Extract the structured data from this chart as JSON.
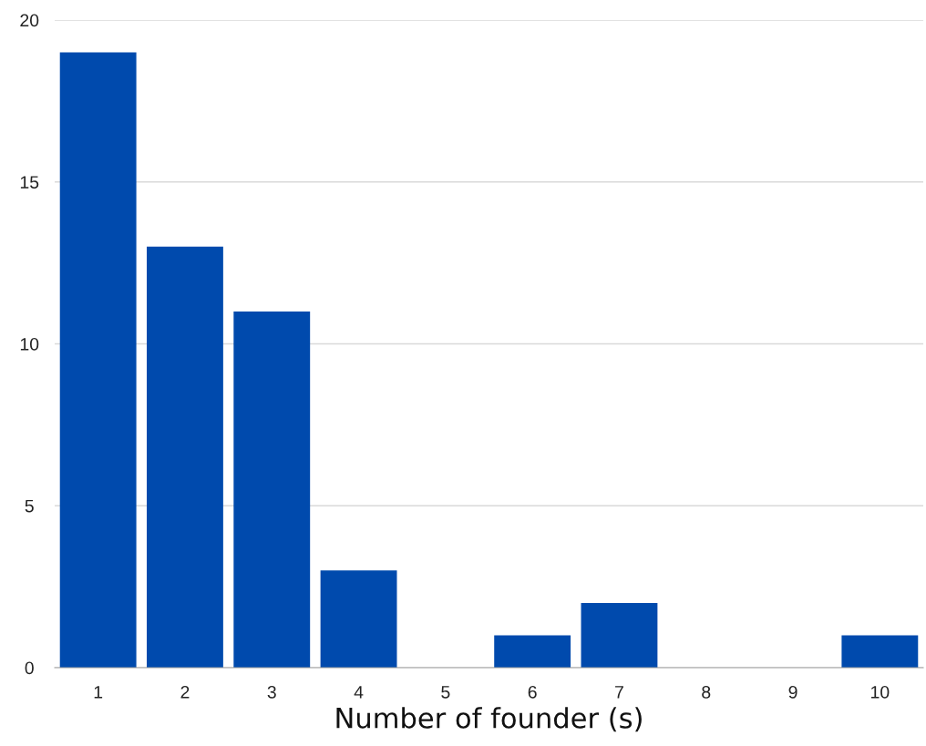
{
  "chart_data": {
    "type": "bar",
    "categories": [
      "1",
      "2",
      "3",
      "4",
      "5",
      "6",
      "7",
      "8",
      "9",
      "10"
    ],
    "values": [
      19,
      13,
      11,
      3,
      0,
      1,
      2,
      0,
      0,
      1
    ],
    "color": "#004aad",
    "xlabel": "Number of founder (s)",
    "ylim": [
      0,
      20
    ],
    "yticks": [
      0,
      5,
      10,
      15,
      20
    ],
    "grid": "y",
    "legend": false
  }
}
